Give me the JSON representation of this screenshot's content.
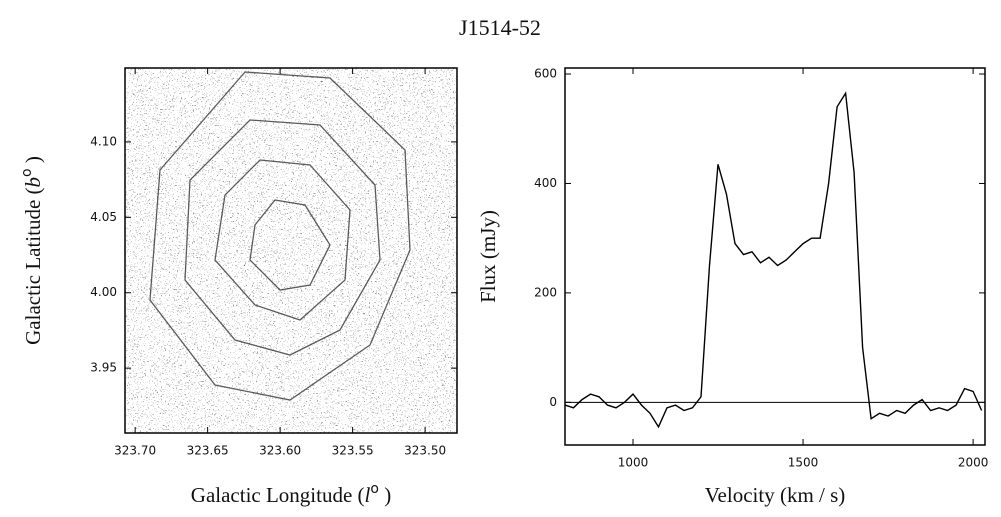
{
  "title": "J1514-52",
  "chart_data": [
    {
      "type": "image",
      "xlabel": [
        "Galactic Longitude (",
        "l",
        "o",
        " )"
      ],
      "ylabel": [
        "Galactic Latitude (",
        "b",
        "o",
        " )"
      ],
      "xlim": [
        323.707,
        323.478
      ],
      "xticks": [
        {
          "value": 323.7,
          "label": "323.70"
        },
        323.65,
        {
          "value": 323.6,
          "label": "323.60"
        },
        323.55,
        {
          "value": 323.5,
          "label": "323.50"
        }
      ],
      "ylim": [
        3.907,
        4.149
      ],
      "yticks": [
        3.95,
        {
          "value": 4.0,
          "label": "4.00"
        },
        4.05,
        {
          "value": 4.1,
          "label": "4.10"
        }
      ]
    },
    {
      "type": "line",
      "xlabel": "Velocity (km / s)",
      "ylabel": "Flux (mJy)",
      "xlim": [
        800,
        2035
      ],
      "xticks": [
        1000,
        1500,
        2000
      ],
      "ylim": [
        -78,
        611
      ],
      "yticks": [
        0,
        200,
        400,
        600
      ],
      "zero_line": true,
      "color": "#000000",
      "x": [
        800,
        825,
        850,
        875,
        900,
        925,
        950,
        975,
        1000,
        1025,
        1050,
        1075,
        1100,
        1125,
        1150,
        1175,
        1200,
        1225,
        1250,
        1275,
        1300,
        1325,
        1350,
        1375,
        1400,
        1425,
        1450,
        1475,
        1500,
        1525,
        1550,
        1575,
        1600,
        1625,
        1650,
        1675,
        1700,
        1725,
        1750,
        1775,
        1800,
        1825,
        1850,
        1875,
        1900,
        1925,
        1950,
        1975,
        2000,
        2025
      ],
      "values": [
        -5,
        -10,
        5,
        15,
        10,
        -5,
        -10,
        0,
        15,
        -5,
        -20,
        -45,
        -10,
        -5,
        -15,
        -10,
        10,
        250,
        435,
        380,
        290,
        270,
        275,
        255,
        265,
        250,
        260,
        275,
        290,
        300,
        300,
        400,
        540,
        565,
        420,
        100,
        -30,
        -20,
        -25,
        -15,
        -20,
        -5,
        5,
        -15,
        -10,
        -15,
        -5,
        25,
        20,
        -15
      ]
    }
  ]
}
